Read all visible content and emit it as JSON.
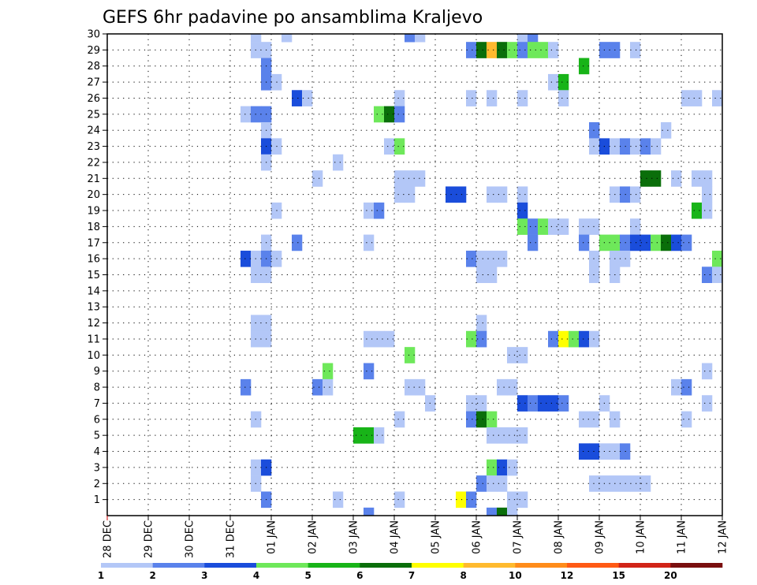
{
  "chart_data": {
    "type": "heatmap",
    "title": "GEFS 6hr padavine po ansamblima Kraljevo",
    "xlabel": "",
    "ylabel": "",
    "x_ticks": [
      "28 DEC",
      "29 DEC",
      "30 DEC",
      "31 DEC",
      "01 JAN",
      "02 JAN",
      "03 JAN",
      "04 JAN",
      "05 JAN",
      "06 JAN",
      "07 JAN",
      "08 JAN",
      "09 JAN",
      "10 JAN",
      "11 JAN",
      "12 JAN"
    ],
    "y_ticks": [
      "1",
      "2",
      "3",
      "4",
      "5",
      "6",
      "7",
      "8",
      "9",
      "10",
      "11",
      "12",
      "13",
      "14",
      "15",
      "16",
      "17",
      "18",
      "19",
      "20",
      "21",
      "22",
      "23",
      "24",
      "25",
      "26",
      "27",
      "28",
      "29",
      "30"
    ],
    "x_range_days": [
      0,
      15
    ],
    "y_range": [
      0,
      30
    ],
    "time_step_hours": 6,
    "grid": "dotted",
    "legend": {
      "placement": "bottom",
      "labels": [
        "1",
        "2",
        "3",
        "4",
        "5",
        "6",
        "7",
        "8",
        "10",
        "12",
        "15",
        "20"
      ],
      "colors": [
        "#b3c7f7",
        "#5a82eb",
        "#1a4ddb",
        "#6ee85a",
        "#18b418",
        "#0a6e0a",
        "#ffff00",
        "#ffba2e",
        "#ff8c1a",
        "#ff5a14",
        "#d12418",
        "#7a0f0f"
      ]
    },
    "cell_classes_note": "value = color class index (1..12) of legend",
    "cells": [
      {
        "x": 3.5,
        "y": 30,
        "v": 1
      },
      {
        "x": 4.25,
        "y": 30,
        "v": 1
      },
      {
        "x": 7.25,
        "y": 30,
        "v": 2
      },
      {
        "x": 7.5,
        "y": 30,
        "v": 1
      },
      {
        "x": 10.0,
        "y": 30,
        "v": 1
      },
      {
        "x": 10.25,
        "y": 30,
        "v": 2
      },
      {
        "x": 3.5,
        "y": 29,
        "v": 1
      },
      {
        "x": 3.75,
        "y": 29,
        "v": 1
      },
      {
        "x": 8.75,
        "y": 29,
        "v": 2
      },
      {
        "x": 9.0,
        "y": 29,
        "v": 6
      },
      {
        "x": 9.25,
        "y": 29,
        "v": 8
      },
      {
        "x": 9.5,
        "y": 29,
        "v": 6
      },
      {
        "x": 9.75,
        "y": 29,
        "v": 4
      },
      {
        "x": 10.0,
        "y": 29,
        "v": 2
      },
      {
        "x": 10.25,
        "y": 29,
        "v": 4
      },
      {
        "x": 10.5,
        "y": 29,
        "v": 4
      },
      {
        "x": 10.75,
        "y": 29,
        "v": 1
      },
      {
        "x": 12.0,
        "y": 29,
        "v": 2
      },
      {
        "x": 12.25,
        "y": 29,
        "v": 2
      },
      {
        "x": 12.75,
        "y": 29,
        "v": 1
      },
      {
        "x": 3.75,
        "y": 28,
        "v": 2
      },
      {
        "x": 11.5,
        "y": 28,
        "v": 5
      },
      {
        "x": 3.75,
        "y": 27,
        "v": 2
      },
      {
        "x": 4.0,
        "y": 27,
        "v": 1
      },
      {
        "x": 10.75,
        "y": 27,
        "v": 1
      },
      {
        "x": 11.0,
        "y": 27,
        "v": 5
      },
      {
        "x": 4.5,
        "y": 26,
        "v": 3
      },
      {
        "x": 4.75,
        "y": 26,
        "v": 1
      },
      {
        "x": 7.0,
        "y": 26,
        "v": 1
      },
      {
        "x": 8.75,
        "y": 26,
        "v": 1
      },
      {
        "x": 9.25,
        "y": 26,
        "v": 1
      },
      {
        "x": 10.0,
        "y": 26,
        "v": 1
      },
      {
        "x": 11.0,
        "y": 26,
        "v": 1
      },
      {
        "x": 14.0,
        "y": 26,
        "v": 1
      },
      {
        "x": 14.25,
        "y": 26,
        "v": 1
      },
      {
        "x": 14.75,
        "y": 26,
        "v": 1
      },
      {
        "x": 3.25,
        "y": 25,
        "v": 1
      },
      {
        "x": 3.5,
        "y": 25,
        "v": 2
      },
      {
        "x": 3.75,
        "y": 25,
        "v": 2
      },
      {
        "x": 6.5,
        "y": 25,
        "v": 4
      },
      {
        "x": 6.75,
        "y": 25,
        "v": 6
      },
      {
        "x": 7.0,
        "y": 25,
        "v": 2
      },
      {
        "x": 3.75,
        "y": 24,
        "v": 1
      },
      {
        "x": 11.75,
        "y": 24,
        "v": 2
      },
      {
        "x": 13.5,
        "y": 24,
        "v": 1
      },
      {
        "x": 3.75,
        "y": 23,
        "v": 3
      },
      {
        "x": 4.0,
        "y": 23,
        "v": 1
      },
      {
        "x": 6.75,
        "y": 23,
        "v": 1
      },
      {
        "x": 7.0,
        "y": 23,
        "v": 4
      },
      {
        "x": 11.75,
        "y": 23,
        "v": 1
      },
      {
        "x": 12.0,
        "y": 23,
        "v": 3
      },
      {
        "x": 12.25,
        "y": 23,
        "v": 1
      },
      {
        "x": 12.5,
        "y": 23,
        "v": 2
      },
      {
        "x": 12.75,
        "y": 23,
        "v": 1
      },
      {
        "x": 13.0,
        "y": 23,
        "v": 2
      },
      {
        "x": 13.25,
        "y": 23,
        "v": 1
      },
      {
        "x": 3.75,
        "y": 22,
        "v": 1
      },
      {
        "x": 5.5,
        "y": 22,
        "v": 1
      },
      {
        "x": 5.0,
        "y": 21,
        "v": 1
      },
      {
        "x": 7.0,
        "y": 21,
        "v": 1
      },
      {
        "x": 7.25,
        "y": 21,
        "v": 1
      },
      {
        "x": 7.5,
        "y": 21,
        "v": 1
      },
      {
        "x": 13.0,
        "y": 21,
        "v": 6
      },
      {
        "x": 13.25,
        "y": 21,
        "v": 6
      },
      {
        "x": 13.75,
        "y": 21,
        "v": 1
      },
      {
        "x": 14.25,
        "y": 21,
        "v": 1
      },
      {
        "x": 14.5,
        "y": 21,
        "v": 1
      },
      {
        "x": 7.0,
        "y": 20,
        "v": 1
      },
      {
        "x": 7.25,
        "y": 20,
        "v": 1
      },
      {
        "x": 8.25,
        "y": 20,
        "v": 3
      },
      {
        "x": 8.5,
        "y": 20,
        "v": 3
      },
      {
        "x": 9.25,
        "y": 20,
        "v": 1
      },
      {
        "x": 9.5,
        "y": 20,
        "v": 1
      },
      {
        "x": 10.0,
        "y": 20,
        "v": 1
      },
      {
        "x": 12.25,
        "y": 20,
        "v": 1
      },
      {
        "x": 12.5,
        "y": 20,
        "v": 2
      },
      {
        "x": 12.75,
        "y": 20,
        "v": 1
      },
      {
        "x": 14.5,
        "y": 20,
        "v": 1
      },
      {
        "x": 4.0,
        "y": 19,
        "v": 1
      },
      {
        "x": 6.25,
        "y": 19,
        "v": 1
      },
      {
        "x": 6.5,
        "y": 19,
        "v": 2
      },
      {
        "x": 10.0,
        "y": 19,
        "v": 3
      },
      {
        "x": 14.25,
        "y": 19,
        "v": 5
      },
      {
        "x": 14.5,
        "y": 19,
        "v": 1
      },
      {
        "x": 10.0,
        "y": 18,
        "v": 4
      },
      {
        "x": 10.25,
        "y": 18,
        "v": 2
      },
      {
        "x": 10.5,
        "y": 18,
        "v": 4
      },
      {
        "x": 10.75,
        "y": 18,
        "v": 1
      },
      {
        "x": 11.0,
        "y": 18,
        "v": 1
      },
      {
        "x": 11.5,
        "y": 18,
        "v": 1
      },
      {
        "x": 11.75,
        "y": 18,
        "v": 1
      },
      {
        "x": 12.75,
        "y": 18,
        "v": 1
      },
      {
        "x": 3.75,
        "y": 17,
        "v": 1
      },
      {
        "x": 4.5,
        "y": 17,
        "v": 2
      },
      {
        "x": 6.25,
        "y": 17,
        "v": 1
      },
      {
        "x": 10.25,
        "y": 17,
        "v": 2
      },
      {
        "x": 11.5,
        "y": 17,
        "v": 2
      },
      {
        "x": 12.0,
        "y": 17,
        "v": 4
      },
      {
        "x": 12.25,
        "y": 17,
        "v": 4
      },
      {
        "x": 12.5,
        "y": 17,
        "v": 2
      },
      {
        "x": 12.75,
        "y": 17,
        "v": 3
      },
      {
        "x": 13.0,
        "y": 17,
        "v": 3
      },
      {
        "x": 13.25,
        "y": 17,
        "v": 4
      },
      {
        "x": 13.5,
        "y": 17,
        "v": 6
      },
      {
        "x": 13.75,
        "y": 17,
        "v": 3
      },
      {
        "x": 14.0,
        "y": 17,
        "v": 2
      },
      {
        "x": 3.25,
        "y": 16,
        "v": 3
      },
      {
        "x": 3.5,
        "y": 16,
        "v": 1
      },
      {
        "x": 3.75,
        "y": 16,
        "v": 2
      },
      {
        "x": 4.0,
        "y": 16,
        "v": 1
      },
      {
        "x": 8.75,
        "y": 16,
        "v": 2
      },
      {
        "x": 9.0,
        "y": 16,
        "v": 1
      },
      {
        "x": 9.25,
        "y": 16,
        "v": 1
      },
      {
        "x": 9.5,
        "y": 16,
        "v": 1
      },
      {
        "x": 11.75,
        "y": 16,
        "v": 1
      },
      {
        "x": 12.25,
        "y": 16,
        "v": 1
      },
      {
        "x": 12.5,
        "y": 16,
        "v": 1
      },
      {
        "x": 14.75,
        "y": 16,
        "v": 4
      },
      {
        "x": 3.5,
        "y": 15,
        "v": 1
      },
      {
        "x": 3.75,
        "y": 15,
        "v": 1
      },
      {
        "x": 9.0,
        "y": 15,
        "v": 1
      },
      {
        "x": 9.25,
        "y": 15,
        "v": 1
      },
      {
        "x": 11.75,
        "y": 15,
        "v": 1
      },
      {
        "x": 12.25,
        "y": 15,
        "v": 1
      },
      {
        "x": 14.5,
        "y": 15,
        "v": 2
      },
      {
        "x": 14.75,
        "y": 15,
        "v": 1
      },
      {
        "x": 3.5,
        "y": 12,
        "v": 1
      },
      {
        "x": 3.75,
        "y": 12,
        "v": 1
      },
      {
        "x": 9.0,
        "y": 12,
        "v": 1
      },
      {
        "x": 3.5,
        "y": 11,
        "v": 1
      },
      {
        "x": 3.75,
        "y": 11,
        "v": 1
      },
      {
        "x": 6.25,
        "y": 11,
        "v": 1
      },
      {
        "x": 6.5,
        "y": 11,
        "v": 1
      },
      {
        "x": 6.75,
        "y": 11,
        "v": 1
      },
      {
        "x": 8.75,
        "y": 11,
        "v": 4
      },
      {
        "x": 9.0,
        "y": 11,
        "v": 2
      },
      {
        "x": 10.75,
        "y": 11,
        "v": 2
      },
      {
        "x": 11.0,
        "y": 11,
        "v": 7
      },
      {
        "x": 11.25,
        "y": 11,
        "v": 4
      },
      {
        "x": 11.5,
        "y": 11,
        "v": 3
      },
      {
        "x": 11.75,
        "y": 11,
        "v": 1
      },
      {
        "x": 7.25,
        "y": 10,
        "v": 4
      },
      {
        "x": 9.75,
        "y": 10,
        "v": 1
      },
      {
        "x": 10.0,
        "y": 10,
        "v": 1
      },
      {
        "x": 5.25,
        "y": 9,
        "v": 4
      },
      {
        "x": 6.25,
        "y": 9,
        "v": 2
      },
      {
        "x": 14.5,
        "y": 9,
        "v": 1
      },
      {
        "x": 3.25,
        "y": 8,
        "v": 2
      },
      {
        "x": 5.0,
        "y": 8,
        "v": 2
      },
      {
        "x": 5.25,
        "y": 8,
        "v": 1
      },
      {
        "x": 7.25,
        "y": 8,
        "v": 1
      },
      {
        "x": 7.5,
        "y": 8,
        "v": 1
      },
      {
        "x": 9.5,
        "y": 8,
        "v": 1
      },
      {
        "x": 9.75,
        "y": 8,
        "v": 1
      },
      {
        "x": 13.75,
        "y": 8,
        "v": 1
      },
      {
        "x": 14.0,
        "y": 8,
        "v": 2
      },
      {
        "x": 7.75,
        "y": 7,
        "v": 1
      },
      {
        "x": 8.75,
        "y": 7,
        "v": 1
      },
      {
        "x": 9.0,
        "y": 7,
        "v": 1
      },
      {
        "x": 10.0,
        "y": 7,
        "v": 3
      },
      {
        "x": 10.25,
        "y": 7,
        "v": 2
      },
      {
        "x": 10.5,
        "y": 7,
        "v": 3
      },
      {
        "x": 10.75,
        "y": 7,
        "v": 3
      },
      {
        "x": 11.0,
        "y": 7,
        "v": 2
      },
      {
        "x": 12.0,
        "y": 7,
        "v": 1
      },
      {
        "x": 14.5,
        "y": 7,
        "v": 1
      },
      {
        "x": 3.5,
        "y": 6,
        "v": 1
      },
      {
        "x": 7.0,
        "y": 6,
        "v": 1
      },
      {
        "x": 8.75,
        "y": 6,
        "v": 2
      },
      {
        "x": 9.0,
        "y": 6,
        "v": 6
      },
      {
        "x": 9.25,
        "y": 6,
        "v": 4
      },
      {
        "x": 11.5,
        "y": 6,
        "v": 1
      },
      {
        "x": 11.75,
        "y": 6,
        "v": 1
      },
      {
        "x": 12.25,
        "y": 6,
        "v": 1
      },
      {
        "x": 14.0,
        "y": 6,
        "v": 1
      },
      {
        "x": 6.0,
        "y": 5,
        "v": 5
      },
      {
        "x": 6.25,
        "y": 5,
        "v": 5
      },
      {
        "x": 6.5,
        "y": 5,
        "v": 1
      },
      {
        "x": 9.25,
        "y": 5,
        "v": 1
      },
      {
        "x": 9.5,
        "y": 5,
        "v": 1
      },
      {
        "x": 9.75,
        "y": 5,
        "v": 1
      },
      {
        "x": 10.0,
        "y": 5,
        "v": 1
      },
      {
        "x": 11.5,
        "y": 4,
        "v": 3
      },
      {
        "x": 11.75,
        "y": 4,
        "v": 3
      },
      {
        "x": 12.0,
        "y": 4,
        "v": 1
      },
      {
        "x": 12.25,
        "y": 4,
        "v": 1
      },
      {
        "x": 12.5,
        "y": 4,
        "v": 2
      },
      {
        "x": 3.5,
        "y": 3,
        "v": 1
      },
      {
        "x": 3.75,
        "y": 3,
        "v": 3
      },
      {
        "x": 9.25,
        "y": 3,
        "v": 4
      },
      {
        "x": 9.5,
        "y": 3,
        "v": 3
      },
      {
        "x": 9.75,
        "y": 3,
        "v": 1
      },
      {
        "x": 3.5,
        "y": 2,
        "v": 1
      },
      {
        "x": 9.0,
        "y": 2,
        "v": 2
      },
      {
        "x": 9.25,
        "y": 2,
        "v": 1
      },
      {
        "x": 9.5,
        "y": 2,
        "v": 1
      },
      {
        "x": 11.75,
        "y": 2,
        "v": 1
      },
      {
        "x": 12.0,
        "y": 2,
        "v": 1
      },
      {
        "x": 12.25,
        "y": 2,
        "v": 1
      },
      {
        "x": 12.5,
        "y": 2,
        "v": 1
      },
      {
        "x": 12.75,
        "y": 2,
        "v": 1
      },
      {
        "x": 13.0,
        "y": 2,
        "v": 1
      },
      {
        "x": 3.75,
        "y": 1,
        "v": 2
      },
      {
        "x": 5.5,
        "y": 1,
        "v": 1
      },
      {
        "x": 7.0,
        "y": 1,
        "v": 1
      },
      {
        "x": 8.5,
        "y": 1,
        "v": 7
      },
      {
        "x": 8.75,
        "y": 1,
        "v": 2
      },
      {
        "x": 9.75,
        "y": 1,
        "v": 1
      },
      {
        "x": 10.0,
        "y": 1,
        "v": 1
      },
      {
        "x": 6.25,
        "y": 0,
        "v": 2
      },
      {
        "x": 9.25,
        "y": 0,
        "v": 2
      },
      {
        "x": 9.5,
        "y": 0,
        "v": 6
      },
      {
        "x": 9.75,
        "y": 0,
        "v": 1
      }
    ]
  }
}
